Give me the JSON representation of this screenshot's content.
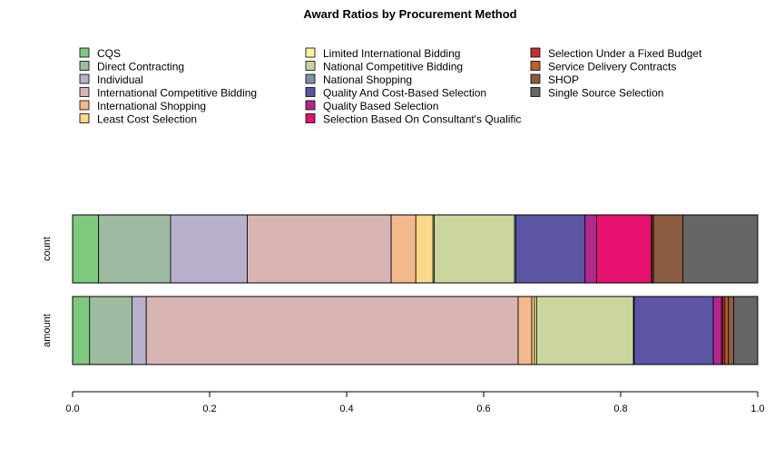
{
  "chart_data": {
    "type": "bar",
    "orientation": "horizontal",
    "stacked": "proportional",
    "title": "Award Ratios by Procurement Method",
    "xlabel": "",
    "ylabel": "",
    "xlim": [
      0,
      1
    ],
    "x_ticks": [
      "0.0",
      "0.2",
      "0.4",
      "0.6",
      "0.8",
      "1.0"
    ],
    "x_tick_values": [
      0,
      0.2,
      0.4,
      0.6,
      0.8,
      1.0
    ],
    "categories": [
      "count",
      "amount"
    ],
    "legend_position": "top",
    "series": [
      {
        "name": "CQS",
        "color": "#7fc97f",
        "values": [
          0.038,
          0.025
        ]
      },
      {
        "name": "Direct Contracting",
        "color": "#9dbba0",
        "values": [
          0.105,
          0.062
        ]
      },
      {
        "name": "Individual",
        "color": "#b9b0ce",
        "values": [
          0.112,
          0.021
        ]
      },
      {
        "name": "International Competitive Bidding",
        "color": "#d8b5b3",
        "values": [
          0.21,
          0.545
        ]
      },
      {
        "name": "International Shopping",
        "color": "#f3b98d",
        "values": [
          0.036,
          0.02
        ]
      },
      {
        "name": "Least Cost Selection",
        "color": "#fcd88b",
        "values": [
          0.025,
          0.004
        ]
      },
      {
        "name": "Limited International Bidding",
        "color": "#fdf2a0",
        "values": [
          0.002,
          0.003
        ]
      },
      {
        "name": "National Competitive Bidding",
        "color": "#cad69e",
        "values": [
          0.117,
          0.142
        ]
      },
      {
        "name": "National Shopping",
        "color": "#7a96a6",
        "values": [
          0.002,
          0.001
        ]
      },
      {
        "name": "Quality And Cost-Based Selection",
        "color": "#5b55a4",
        "values": [
          0.101,
          0.116
        ]
      },
      {
        "name": "Quality Based Selection",
        "color": "#b2278d",
        "values": [
          0.017,
          0.012
        ]
      },
      {
        "name": "Selection Based On Consultant's Qualific",
        "color": "#e6116e",
        "values": [
          0.08,
          0.002
        ]
      },
      {
        "name": "Selection Under a Fixed Budget",
        "color": "#bf3036",
        "values": [
          0.001,
          0.003
        ]
      },
      {
        "name": "Service Delivery Contracts",
        "color": "#b5622d",
        "values": [
          0.002,
          0.005
        ]
      },
      {
        "name": "SHOP",
        "color": "#8d5c43",
        "values": [
          0.043,
          0.008
        ]
      },
      {
        "name": "Single Source Selection",
        "color": "#666666",
        "values": [
          0.109,
          0.035
        ]
      }
    ]
  }
}
